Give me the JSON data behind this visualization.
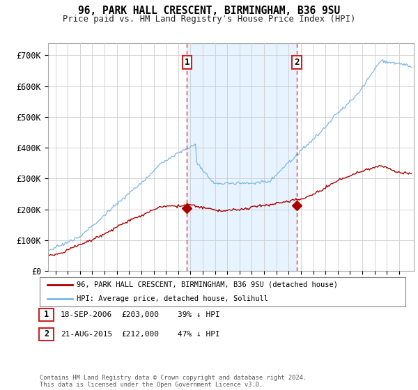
{
  "title": "96, PARK HALL CRESCENT, BIRMINGHAM, B36 9SU",
  "subtitle": "Price paid vs. HM Land Registry's House Price Index (HPI)",
  "ylabel_ticks": [
    "£0",
    "£100K",
    "£200K",
    "£300K",
    "£400K",
    "£500K",
    "£600K",
    "£700K"
  ],
  "ytick_values": [
    0,
    100000,
    200000,
    300000,
    400000,
    500000,
    600000,
    700000
  ],
  "ylim": [
    0,
    740000
  ],
  "xlim_start": 1995.4,
  "xlim_end": 2025.2,
  "hpi_color": "#7ab8e8",
  "hpi_fill_color": "#ddeeff",
  "price_color": "#aa0000",
  "marker1_date": 2006.72,
  "marker1_price": 203000,
  "marker2_date": 2015.65,
  "marker2_price": 212000,
  "vline_color": "#ee3333",
  "legend1": "96, PARK HALL CRESCENT, BIRMINGHAM, B36 9SU (detached house)",
  "legend2": "HPI: Average price, detached house, Solihull",
  "table_rows": [
    {
      "num": "1",
      "date": "18-SEP-2006",
      "price": "£203,000",
      "pct": "39% ↓ HPI"
    },
    {
      "num": "2",
      "date": "21-AUG-2015",
      "price": "£212,000",
      "pct": "47% ↓ HPI"
    }
  ],
  "footnote": "Contains HM Land Registry data © Crown copyright and database right 2024.\nThis data is licensed under the Open Government Licence v3.0.",
  "background_color": "#ffffff",
  "grid_color": "#cccccc"
}
